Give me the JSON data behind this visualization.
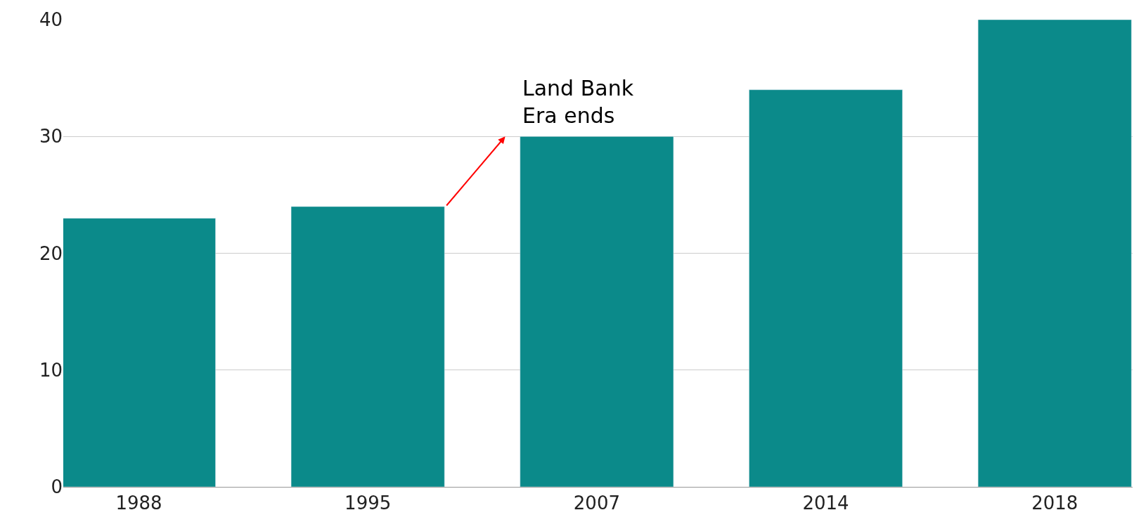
{
  "chart_data": {
    "type": "bar",
    "categories": [
      "1988",
      "1995",
      "2007",
      "2014",
      "2018"
    ],
    "values": [
      23,
      24,
      30,
      34,
      40
    ],
    "color": "#0b8a8a",
    "ylim": [
      0,
      40
    ],
    "yticks": [
      0,
      10,
      20,
      30,
      40
    ],
    "grid": "y",
    "annotations": [
      {
        "text": "Land Bank\nEra ends",
        "x": "2007",
        "y": 30
      }
    ]
  }
}
